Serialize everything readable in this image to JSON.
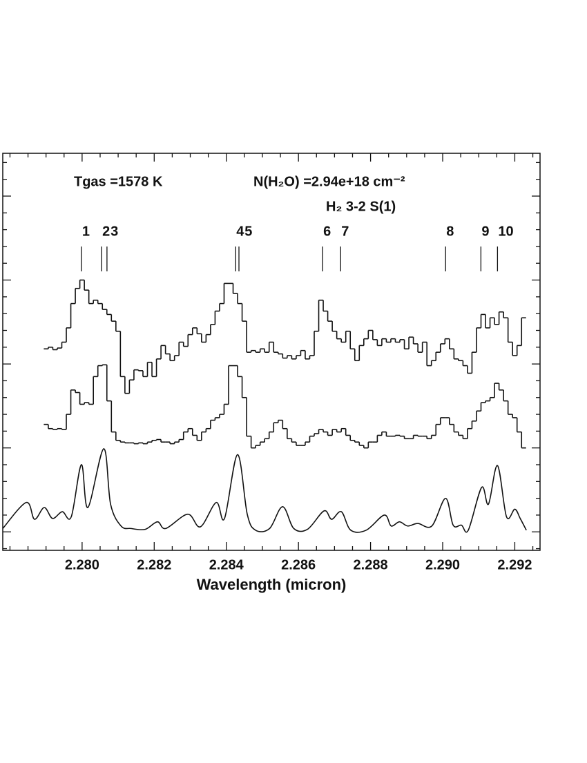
{
  "chart_data": {
    "type": "line",
    "xlabel": "Wavelength (micron)",
    "xlim": [
      2.2778,
      2.2927
    ],
    "xticks": [
      {
        "value": 2.28,
        "label": "2.280"
      },
      2.282,
      2.284,
      2.286,
      2.288,
      {
        "value": 2.29,
        "label": "2.290"
      },
      2.292
    ],
    "xminorticks": [
      2.278,
      2.2785,
      2.279,
      2.2795,
      2.2805,
      2.281,
      2.2815,
      2.2825,
      2.283,
      2.2835,
      2.2845,
      2.285,
      2.2855,
      2.2865,
      2.287,
      2.2875,
      2.2885,
      2.289,
      2.2895,
      2.2905,
      2.291,
      2.2915,
      2.2925
    ],
    "ylim": [
      -0.22,
      4.51
    ],
    "yticks": [
      0,
      1,
      2,
      3,
      4
    ],
    "yminorticks": [
      -0.2,
      0.2,
      0.4,
      0.6,
      0.8,
      1.2,
      1.4,
      1.6,
      1.8,
      2.2,
      2.4,
      2.6,
      2.8,
      3.2,
      3.4,
      3.6,
      3.8,
      4.2,
      4.4
    ],
    "annotations": [
      "Tgas =1578 K",
      "N(H₂O) =2.94e+18 cm⁻²",
      "H₂ 3-2 S(1)"
    ],
    "line_markers": {
      "labels": [
        "1",
        "2",
        "3",
        "4",
        "5",
        "6",
        "7",
        "8",
        "9",
        "10"
      ],
      "x": [
        2.27998,
        2.28054,
        2.28069,
        2.28426,
        2.28435,
        2.28667,
        2.28717,
        2.29008,
        2.29106,
        2.29152
      ]
    },
    "series": [
      {
        "drawstyle": "steps-mid",
        "color": "#111111",
        "x": [
          2.279,
          2.279125,
          2.27925,
          2.279375,
          2.2795,
          2.279625,
          2.27975,
          2.279875,
          2.28,
          2.280125,
          2.28025,
          2.280375,
          2.2805,
          2.280625,
          2.28075,
          2.280875,
          2.281,
          2.281125,
          2.28125,
          2.281375,
          2.2815,
          2.281625,
          2.28175,
          2.281875,
          2.282,
          2.282125,
          2.28225,
          2.282375,
          2.2825,
          2.282625,
          2.28275,
          2.282875,
          2.283,
          2.283125,
          2.28325,
          2.283375,
          2.2835,
          2.283625,
          2.28375,
          2.283875,
          2.284,
          2.284125,
          2.28425,
          2.284375,
          2.2845,
          2.284625,
          2.28475,
          2.284875,
          2.285,
          2.285125,
          2.28525,
          2.285375,
          2.2855,
          2.285625,
          2.28575,
          2.285875,
          2.286,
          2.286125,
          2.28625,
          2.286375,
          2.2865,
          2.286625,
          2.28675,
          2.286875,
          2.287,
          2.287125,
          2.28725,
          2.287375,
          2.2875,
          2.287625,
          2.28775,
          2.287875,
          2.288,
          2.288125,
          2.28825,
          2.288375,
          2.2885,
          2.288625,
          2.28875,
          2.288875,
          2.289,
          2.289125,
          2.28925,
          2.289375,
          2.2895,
          2.289625,
          2.28975,
          2.289875,
          2.29,
          2.290125,
          2.29025,
          2.290375,
          2.2905,
          2.290625,
          2.29075,
          2.290875,
          2.291,
          2.291125,
          2.29125,
          2.291375,
          2.2915,
          2.291625,
          2.29175,
          2.291875,
          2.292,
          2.292125,
          2.29225
        ],
        "values": [
          2.18,
          2.2,
          2.17,
          2.19,
          2.26,
          2.43,
          2.72,
          2.9,
          3.0,
          2.88,
          2.72,
          2.76,
          2.72,
          2.65,
          2.59,
          2.51,
          2.39,
          1.85,
          1.65,
          1.81,
          1.93,
          1.92,
          1.85,
          2.02,
          1.85,
          2.06,
          2.22,
          2.12,
          2.04,
          2.1,
          2.26,
          2.21,
          2.35,
          2.43,
          2.36,
          2.26,
          2.35,
          2.47,
          2.63,
          2.72,
          2.96,
          2.96,
          2.84,
          2.72,
          2.51,
          2.14,
          2.16,
          2.14,
          2.18,
          2.14,
          2.26,
          2.14,
          2.12,
          2.07,
          2.1,
          2.06,
          2.1,
          2.16,
          2.06,
          2.1,
          2.39,
          2.76,
          2.63,
          2.51,
          2.39,
          2.3,
          2.26,
          2.39,
          2.18,
          2.04,
          2.22,
          2.3,
          2.4,
          2.29,
          2.22,
          2.3,
          2.26,
          2.3,
          2.26,
          2.29,
          2.18,
          2.32,
          2.24,
          2.14,
          2.26,
          1.98,
          2.04,
          2.14,
          2.24,
          2.3,
          2.18,
          2.06,
          2.04,
          1.98,
          1.89,
          2.14,
          2.43,
          2.59,
          2.43,
          2.55,
          2.47,
          2.62,
          2.55,
          2.26,
          2.1,
          2.22,
          2.55
        ]
      },
      {
        "drawstyle": "steps-mid",
        "color": "#111111",
        "x": [
          2.279,
          2.279125,
          2.27925,
          2.279375,
          2.2795,
          2.279625,
          2.27975,
          2.279875,
          2.28,
          2.280125,
          2.28025,
          2.280375,
          2.2805,
          2.280625,
          2.28075,
          2.280875,
          2.281,
          2.281125,
          2.28125,
          2.281375,
          2.2815,
          2.281625,
          2.28175,
          2.281875,
          2.282,
          2.282125,
          2.28225,
          2.282375,
          2.2825,
          2.282625,
          2.28275,
          2.282875,
          2.283,
          2.283125,
          2.28325,
          2.283375,
          2.2835,
          2.283625,
          2.28375,
          2.283875,
          2.284,
          2.284125,
          2.28425,
          2.284375,
          2.2845,
          2.284625,
          2.28475,
          2.284875,
          2.285,
          2.285125,
          2.28525,
          2.285375,
          2.2855,
          2.285625,
          2.28575,
          2.285875,
          2.286,
          2.286125,
          2.28625,
          2.286375,
          2.2865,
          2.286625,
          2.28675,
          2.286875,
          2.287,
          2.287125,
          2.28725,
          2.287375,
          2.2875,
          2.287625,
          2.28775,
          2.287875,
          2.288,
          2.288125,
          2.28825,
          2.288375,
          2.2885,
          2.288625,
          2.28875,
          2.288875,
          2.289,
          2.289125,
          2.28925,
          2.289375,
          2.2895,
          2.289625,
          2.28975,
          2.289875,
          2.29,
          2.290125,
          2.29025,
          2.290375,
          2.2905,
          2.290625,
          2.29075,
          2.290875,
          2.291,
          2.291125,
          2.29125,
          2.291375,
          2.2915,
          2.291625,
          2.29175,
          2.291875,
          2.292,
          2.292125,
          2.29225
        ],
        "values": [
          1.28,
          1.23,
          1.22,
          1.23,
          1.22,
          1.4,
          1.69,
          1.66,
          1.52,
          1.54,
          1.52,
          1.85,
          1.98,
          1.99,
          1.56,
          1.19,
          1.09,
          1.07,
          1.06,
          1.06,
          1.05,
          1.06,
          1.05,
          1.07,
          1.09,
          1.1,
          1.07,
          1.07,
          1.05,
          1.07,
          1.1,
          1.19,
          1.23,
          1.15,
          1.09,
          1.19,
          1.23,
          1.33,
          1.36,
          1.4,
          1.52,
          1.98,
          1.98,
          1.85,
          1.6,
          1.14,
          1.0,
          1.03,
          1.07,
          1.11,
          1.19,
          1.3,
          1.33,
          1.23,
          1.11,
          1.07,
          1.03,
          1.03,
          1.07,
          1.14,
          1.17,
          1.22,
          1.19,
          1.15,
          1.22,
          1.19,
          1.23,
          1.15,
          1.09,
          1.07,
          1.03,
          1.0,
          1.07,
          1.07,
          1.15,
          1.19,
          1.14,
          1.14,
          1.15,
          1.14,
          1.11,
          1.11,
          1.15,
          1.14,
          1.14,
          1.11,
          1.15,
          1.28,
          1.36,
          1.36,
          1.28,
          1.19,
          1.15,
          1.11,
          1.23,
          1.32,
          1.44,
          1.54,
          1.56,
          1.6,
          1.77,
          1.69,
          1.56,
          1.4,
          1.36,
          1.19,
          1.0
        ]
      },
      {
        "drawstyle": "smooth",
        "color": "#111111",
        "x": [
          2.2778,
          2.27845,
          2.27868,
          2.27895,
          2.27918,
          2.27945,
          2.2797,
          2.27998,
          2.28016,
          2.2806,
          2.28079,
          2.28108,
          2.28136,
          2.28175,
          2.28209,
          2.28232,
          2.28293,
          2.28328,
          2.28372,
          2.28395,
          2.28431,
          2.28458,
          2.28481,
          2.2852,
          2.28556,
          2.28587,
          2.28625,
          2.28671,
          2.28692,
          2.28719,
          2.28745,
          2.28788,
          2.28838,
          2.28857,
          2.2888,
          2.28903,
          2.28931,
          2.2897,
          2.29008,
          2.29029,
          2.29052,
          2.29071,
          2.29108,
          2.29127,
          2.29152,
          2.29177,
          2.292,
          2.29215,
          2.29232
        ],
        "values": [
          0.04,
          0.35,
          0.15,
          0.29,
          0.16,
          0.24,
          0.18,
          0.8,
          0.29,
          0.99,
          0.33,
          0.07,
          0.04,
          0.03,
          0.12,
          0.04,
          0.21,
          0.06,
          0.35,
          0.16,
          0.92,
          0.21,
          0.02,
          0.04,
          0.3,
          0.04,
          0.03,
          0.25,
          0.15,
          0.24,
          0.02,
          0.02,
          0.2,
          0.07,
          0.12,
          0.07,
          0.1,
          0.07,
          0.4,
          0.08,
          0.08,
          0.02,
          0.53,
          0.33,
          0.79,
          0.18,
          0.27,
          0.16,
          0.02
        ]
      }
    ]
  }
}
